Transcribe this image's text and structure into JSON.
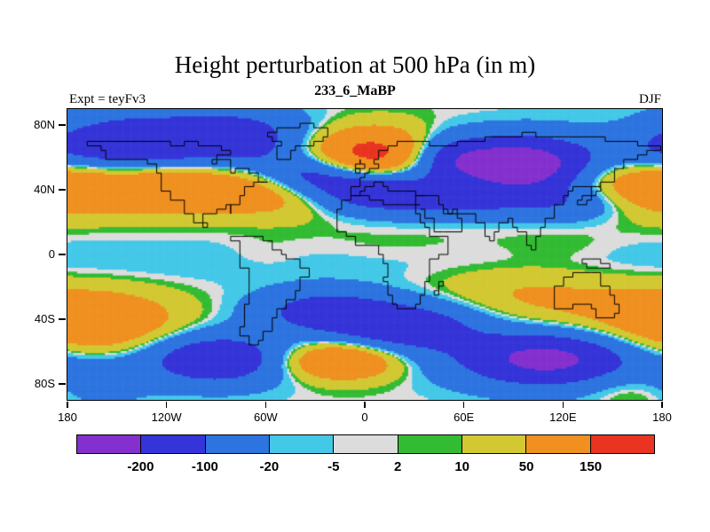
{
  "header": {
    "title": "Height perturbation at 500 hPa (in m)",
    "subtitle": "233_6_MaBP",
    "left_label": "Expt = teyFv3",
    "right_label": "DJF"
  },
  "chart_data": {
    "type": "heatmap",
    "title": "Height perturbation at 500 hPa (in m)",
    "subtitle": "233_6_MaBP",
    "annotations": {
      "left": "Expt = teyFv3",
      "right": "DJF"
    },
    "units": "m",
    "projection": "equirectangular",
    "lon_range": [
      -180,
      180
    ],
    "lat_range": [
      -90,
      90
    ],
    "x_ticks": {
      "values": [
        -180,
        -120,
        -60,
        0,
        60,
        120,
        180
      ],
      "labels": [
        "180",
        "120W",
        "60W",
        "0",
        "60E",
        "120E",
        "180"
      ]
    },
    "y_ticks": {
      "values": [
        80,
        40,
        0,
        -40,
        -80
      ],
      "labels": [
        "80N",
        "40N",
        "0",
        "40S",
        "80S"
      ]
    },
    "contour_levels": [
      -200,
      -100,
      -20,
      -5,
      2,
      10,
      50,
      150
    ],
    "palette": [
      "#8430ce",
      "#3434d8",
      "#2d74e0",
      "#44c8e8",
      "#dcdcdc",
      "#33bb33",
      "#d2c832",
      "#ef9020",
      "#e83420"
    ],
    "field_model": {
      "description": "Gaussian anomaly centers approximating the plotted 500 hPa height perturbation field; value(lon,lat)=sum amp*exp(-0.5*((dlon/slon)^2+((lat-clat)/slat)^2)), dlon wrapped. Format: [lon, lat, amplitude_m, sigma_lon_deg, sigma_lat_deg]",
      "features": [
        [
          -150,
          68,
          -195,
          45,
          14
        ],
        [
          -75,
          72,
          -130,
          30,
          12
        ],
        [
          -120,
          42,
          162,
          38,
          11
        ],
        [
          -45,
          38,
          100,
          30,
          10
        ],
        [
          170,
          42,
          135,
          28,
          12
        ],
        [
          5,
          62,
          205,
          30,
          11
        ],
        [
          95,
          55,
          -280,
          28,
          12
        ],
        [
          50,
          60,
          -150,
          20,
          10
        ],
        [
          -35,
          50,
          -140,
          22,
          9
        ],
        [
          0,
          40,
          -190,
          30,
          9
        ],
        [
          55,
          32,
          -90,
          35,
          7
        ],
        [
          130,
          32,
          -80,
          30,
          8
        ],
        [
          170,
          78,
          40,
          30,
          10
        ],
        [
          0,
          -4,
          -14,
          100000,
          11
        ],
        [
          20,
          5,
          12,
          45,
          9
        ],
        [
          115,
          5,
          14,
          25,
          8
        ],
        [
          -60,
          0,
          10,
          18,
          8
        ],
        [
          -165,
          -42,
          140,
          35,
          13
        ],
        [
          -25,
          -35,
          -140,
          28,
          9
        ],
        [
          25,
          -45,
          -170,
          32,
          11
        ],
        [
          -90,
          -65,
          -190,
          30,
          11
        ],
        [
          -15,
          -66,
          165,
          24,
          8
        ],
        [
          110,
          -65,
          -235,
          38,
          12
        ],
        [
          120,
          -32,
          45,
          45,
          12
        ],
        [
          90,
          -20,
          30,
          40,
          10
        ],
        [
          160,
          -84,
          30,
          20,
          8
        ],
        [
          -160,
          -78,
          -55,
          20,
          10
        ]
      ]
    },
    "coastlines": [
      [
        [
          -168,
          66
        ],
        [
          -160,
          64
        ],
        [
          -158,
          58
        ],
        [
          -152,
          60
        ],
        [
          -145,
          60
        ],
        [
          -133,
          56
        ],
        [
          -125,
          49
        ],
        [
          -122,
          40
        ],
        [
          -117,
          33
        ],
        [
          -110,
          25
        ],
        [
          -105,
          20
        ],
        [
          -97,
          16
        ],
        [
          -95,
          20
        ],
        [
          -97,
          26
        ],
        [
          -91,
          29
        ],
        [
          -84,
          30
        ],
        [
          -81,
          26
        ],
        [
          -80,
          27
        ],
        [
          -81,
          31
        ],
        [
          -76,
          35
        ],
        [
          -72,
          41
        ],
        [
          -66,
          44
        ],
        [
          -60,
          46
        ],
        [
          -64,
          49
        ],
        [
          -70,
          52
        ],
        [
          -78,
          51
        ],
        [
          -82,
          55
        ],
        [
          -80,
          60
        ],
        [
          -86,
          58
        ],
        [
          -93,
          57
        ],
        [
          -90,
          62
        ],
        [
          -82,
          64
        ],
        [
          -88,
          67
        ],
        [
          -95,
          67
        ],
        [
          -102,
          69
        ],
        [
          -110,
          68
        ],
        [
          -118,
          69
        ],
        [
          -128,
          70
        ],
        [
          -136,
          69
        ],
        [
          -145,
          70
        ],
        [
          -155,
          71
        ],
        [
          -163,
          69
        ],
        [
          -168,
          66
        ]
      ],
      [
        [
          -46,
          60
        ],
        [
          -53,
          64
        ],
        [
          -54,
          68
        ],
        [
          -50,
          70
        ],
        [
          -56,
          73
        ],
        [
          -60,
          76
        ],
        [
          -52,
          79
        ],
        [
          -40,
          81
        ],
        [
          -30,
          79
        ],
        [
          -21,
          74
        ],
        [
          -24,
          70
        ],
        [
          -32,
          67
        ],
        [
          -41,
          63
        ],
        [
          -46,
          60
        ]
      ],
      [
        [
          -80,
          9
        ],
        [
          -77,
          0
        ],
        [
          -75,
          -9
        ],
        [
          -70,
          -19
        ],
        [
          -70,
          -32
        ],
        [
          -73,
          -44
        ],
        [
          -75,
          -51
        ],
        [
          -70,
          -55
        ],
        [
          -64,
          -54
        ],
        [
          -63,
          -47
        ],
        [
          -57,
          -38
        ],
        [
          -53,
          -34
        ],
        [
          -48,
          -27
        ],
        [
          -41,
          -22
        ],
        [
          -38,
          -15
        ],
        [
          -35,
          -9
        ],
        [
          -39,
          -4
        ],
        [
          -47,
          -1
        ],
        [
          -51,
          4
        ],
        [
          -57,
          8
        ],
        [
          -63,
          10
        ],
        [
          -70,
          12
        ],
        [
          -76,
          11
        ],
        [
          -80,
          9
        ]
      ],
      [
        [
          -9,
          33
        ],
        [
          -13,
          27
        ],
        [
          -17,
          21
        ],
        [
          -16,
          15
        ],
        [
          -12,
          10
        ],
        [
          -6,
          5
        ],
        [
          2,
          6
        ],
        [
          8,
          4
        ],
        [
          9,
          -1
        ],
        [
          12,
          -7
        ],
        [
          13,
          -13
        ],
        [
          12,
          -18
        ],
        [
          15,
          -24
        ],
        [
          17,
          -30
        ],
        [
          20,
          -35
        ],
        [
          26,
          -34
        ],
        [
          31,
          -30
        ],
        [
          34,
          -24
        ],
        [
          37,
          -17
        ],
        [
          40,
          -11
        ],
        [
          40,
          -4
        ],
        [
          44,
          0
        ],
        [
          49,
          3
        ],
        [
          51,
          11
        ],
        [
          44,
          10
        ],
        [
          40,
          16
        ],
        [
          37,
          20
        ],
        [
          34,
          26
        ],
        [
          32,
          30
        ],
        [
          26,
          32
        ],
        [
          18,
          31
        ],
        [
          10,
          34
        ],
        [
          2,
          37
        ],
        [
          -6,
          36
        ],
        [
          -9,
          33
        ]
      ],
      [
        [
          -9,
          36
        ],
        [
          -9,
          43
        ],
        [
          -4,
          47
        ],
        [
          0,
          49
        ],
        [
          4,
          52
        ],
        [
          8,
          54
        ],
        [
          7,
          57
        ],
        [
          5,
          59
        ],
        [
          9,
          63
        ],
        [
          13,
          66
        ],
        [
          19,
          69
        ],
        [
          27,
          71
        ],
        [
          33,
          69
        ],
        [
          40,
          67
        ],
        [
          46,
          68
        ],
        [
          55,
          69
        ],
        [
          66,
          70
        ],
        [
          74,
          72
        ],
        [
          84,
          74
        ],
        [
          96,
          76
        ],
        [
          104,
          73
        ],
        [
          114,
          74
        ],
        [
          124,
          72
        ],
        [
          136,
          72
        ],
        [
          146,
          71
        ],
        [
          156,
          70
        ],
        [
          164,
          67
        ],
        [
          172,
          66
        ],
        [
          179,
          65
        ],
        [
          172,
          61
        ],
        [
          164,
          58
        ],
        [
          158,
          52
        ],
        [
          151,
          45
        ],
        [
          142,
          41
        ],
        [
          131,
          42
        ],
        [
          127,
          39
        ],
        [
          122,
          37
        ],
        [
          120,
          31
        ],
        [
          116,
          23
        ],
        [
          108,
          18
        ],
        [
          105,
          10
        ],
        [
          103,
          3
        ],
        [
          100,
          6
        ],
        [
          97,
          13
        ],
        [
          93,
          17
        ],
        [
          90,
          22
        ],
        [
          86,
          20
        ],
        [
          82,
          14
        ],
        [
          79,
          9
        ],
        [
          76,
          10
        ],
        [
          72,
          20
        ],
        [
          67,
          24
        ],
        [
          61,
          25
        ],
        [
          56,
          27
        ],
        [
          52,
          25
        ],
        [
          50,
          28
        ],
        [
          47,
          30
        ],
        [
          44,
          36
        ],
        [
          40,
          37
        ],
        [
          36,
          36
        ],
        [
          32,
          33
        ],
        [
          30,
          31
        ],
        [
          33,
          30
        ]
      ],
      [
        [
          36,
          36
        ],
        [
          30,
          38
        ],
        [
          26,
          39
        ],
        [
          22,
          38
        ],
        [
          18,
          40
        ],
        [
          15,
          41
        ],
        [
          12,
          44
        ],
        [
          9,
          44
        ],
        [
          5,
          43
        ],
        [
          0,
          40
        ],
        [
          -2,
          37
        ],
        [
          -5,
          36
        ],
        [
          -9,
          36
        ]
      ],
      [
        [
          34,
          28
        ],
        [
          37,
          21
        ],
        [
          42,
          14
        ],
        [
          47,
          13
        ],
        [
          53,
          15
        ],
        [
          58,
          18
        ],
        [
          58,
          22
        ],
        [
          55,
          25
        ],
        [
          50,
          26
        ],
        [
          47,
          29
        ]
      ],
      [
        [
          -5,
          50
        ],
        [
          -4,
          53
        ],
        [
          -6,
          56
        ],
        [
          -4,
          58
        ],
        [
          -2,
          55
        ],
        [
          0,
          52
        ],
        [
          -5,
          50
        ]
      ],
      [
        [
          130,
          31
        ],
        [
          133,
          34
        ],
        [
          137,
          35
        ],
        [
          140,
          36
        ],
        [
          141,
          40
        ],
        [
          143,
          43
        ],
        [
          140,
          41
        ],
        [
          136,
          36
        ],
        [
          132,
          33
        ],
        [
          130,
          31
        ]
      ],
      [
        [
          114,
          -22
        ],
        [
          114,
          -34
        ],
        [
          119,
          -35
        ],
        [
          125,
          -32
        ],
        [
          131,
          -32
        ],
        [
          136,
          -35
        ],
        [
          140,
          -38
        ],
        [
          146,
          -39
        ],
        [
          150,
          -37
        ],
        [
          153,
          -31
        ],
        [
          152,
          -25
        ],
        [
          147,
          -19
        ],
        [
          142,
          -11
        ],
        [
          136,
          -12
        ],
        [
          131,
          -11
        ],
        [
          126,
          -14
        ],
        [
          121,
          -19
        ],
        [
          114,
          -22
        ]
      ],
      [
        [
          131,
          -2
        ],
        [
          137,
          -3
        ],
        [
          143,
          -5
        ],
        [
          148,
          -9
        ],
        [
          142,
          -9
        ],
        [
          135,
          -5
        ],
        [
          131,
          -2
        ]
      ],
      [
        [
          44,
          -16
        ],
        [
          48,
          -19
        ],
        [
          46,
          -25
        ],
        [
          43,
          -22
        ],
        [
          44,
          -16
        ]
      ]
    ]
  }
}
